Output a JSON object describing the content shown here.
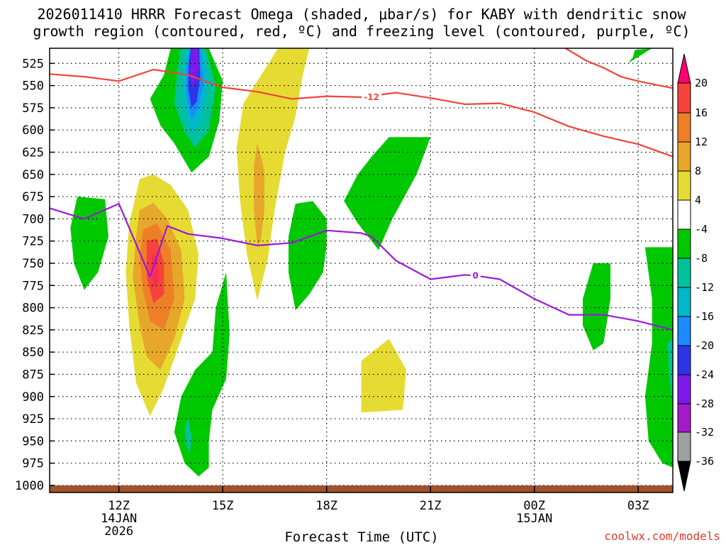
{
  "chart_data": {
    "type": "contour",
    "title_line1": "2026011410 HRRR Forecast Omega (shaded, μbar/s) for KABY with dendritic snow",
    "title_line2": "growth region (contoured, red, ºC) and freezing level (contoured, purple, ºC)",
    "xlabel": "Forecast Time (UTC)",
    "x_ticks": [
      {
        "hour": 12,
        "label": "12Z",
        "sub1": "14JAN",
        "sub2": "2026"
      },
      {
        "hour": 15,
        "label": "15Z",
        "sub1": "",
        "sub2": ""
      },
      {
        "hour": 18,
        "label": "18Z",
        "sub1": "",
        "sub2": ""
      },
      {
        "hour": 21,
        "label": "21Z",
        "sub1": "",
        "sub2": ""
      },
      {
        "hour": 24,
        "label": "00Z",
        "sub1": "15JAN",
        "sub2": ""
      },
      {
        "hour": 27,
        "label": "03Z",
        "sub1": "",
        "sub2": ""
      }
    ],
    "xlim": [
      10,
      28
    ],
    "y_ticks": [
      525,
      550,
      575,
      600,
      625,
      650,
      675,
      700,
      725,
      750,
      775,
      800,
      825,
      850,
      875,
      900,
      925,
      950,
      975,
      1000
    ],
    "ylim": [
      508,
      1008
    ],
    "colorbar": {
      "labels": [
        "20",
        "16",
        "12",
        "8",
        "4",
        "-4",
        "-8",
        "-12",
        "-16",
        "-20",
        "-24",
        "-28",
        "-32",
        "-36"
      ],
      "colors": [
        "#ff0073",
        "#f5433b",
        "#ef7f27",
        "#e6a72b",
        "#e6db32",
        "#ffffff",
        "#00c800",
        "#00c29a",
        "#00b8c8",
        "#1a8cff",
        "#2d36e6",
        "#7d1aeb",
        "#a51ac8",
        "#a0a0a0",
        "#000000"
      ]
    },
    "contour_labels": {
      "dgz": "-12",
      "freezing": "0"
    },
    "series": [
      {
        "name": "dendritic growth region (-12 C)",
        "color": "#f0443a",
        "points": [
          [
            10,
            537
          ],
          [
            11,
            540
          ],
          [
            12,
            545
          ],
          [
            13,
            532
          ],
          [
            14,
            538
          ],
          [
            15,
            552
          ],
          [
            16,
            557
          ],
          [
            17,
            565
          ],
          [
            18,
            562
          ],
          [
            19,
            563
          ],
          [
            20,
            558
          ],
          [
            21,
            564
          ],
          [
            22,
            571
          ],
          [
            23,
            570
          ],
          [
            24,
            580
          ],
          [
            25,
            596
          ],
          [
            26,
            607
          ],
          [
            27,
            616
          ],
          [
            28,
            630
          ]
        ]
      },
      {
        "name": "freezing level (0 C)",
        "color": "#9b1ad6",
        "points": [
          [
            10,
            688
          ],
          [
            11,
            700
          ],
          [
            12,
            683
          ],
          [
            12.9,
            765
          ],
          [
            13.4,
            708
          ],
          [
            14,
            717
          ],
          [
            15,
            722
          ],
          [
            16,
            730
          ],
          [
            17,
            727
          ],
          [
            18,
            713
          ],
          [
            19,
            716
          ],
          [
            19.3,
            720
          ],
          [
            20,
            747
          ],
          [
            21,
            768
          ],
          [
            22,
            763
          ],
          [
            22.5,
            765
          ],
          [
            23,
            768
          ],
          [
            24,
            790
          ],
          [
            25,
            808
          ],
          [
            26,
            808
          ],
          [
            27,
            815
          ],
          [
            28,
            825
          ]
        ]
      },
      {
        "name": "dendritic growth region upper (-12 C)",
        "color": "#f0443a",
        "points": [
          [
            24.9,
            508
          ],
          [
            25.5,
            522
          ],
          [
            26,
            530
          ],
          [
            26.5,
            540
          ],
          [
            27,
            545
          ],
          [
            28,
            553
          ]
        ]
      }
    ],
    "omega_regions": [
      {
        "value": -8,
        "points": [
          [
            13.5,
            508
          ],
          [
            14.6,
            508
          ],
          [
            15.0,
            545
          ],
          [
            14.9,
            590
          ],
          [
            14.6,
            630
          ],
          [
            14.1,
            648
          ],
          [
            13.6,
            615
          ],
          [
            13.2,
            595
          ],
          [
            12.9,
            565
          ],
          [
            13.3,
            538
          ]
        ]
      },
      {
        "value": -12,
        "points": [
          [
            13.8,
            508
          ],
          [
            14.5,
            508
          ],
          [
            14.8,
            550
          ],
          [
            14.6,
            600
          ],
          [
            14.2,
            620
          ],
          [
            13.9,
            602
          ],
          [
            13.6,
            570
          ],
          [
            13.7,
            530
          ]
        ]
      },
      {
        "value": -16,
        "points": [
          [
            13.95,
            508
          ],
          [
            14.45,
            508
          ],
          [
            14.6,
            545
          ],
          [
            14.4,
            590
          ],
          [
            14.1,
            605
          ],
          [
            13.9,
            580
          ],
          [
            13.85,
            540
          ]
        ]
      },
      {
        "value": -20,
        "points": [
          [
            14.05,
            508
          ],
          [
            14.35,
            508
          ],
          [
            14.45,
            545
          ],
          [
            14.3,
            575
          ],
          [
            14.1,
            588
          ],
          [
            13.95,
            560
          ],
          [
            13.95,
            530
          ]
        ]
      },
      {
        "value": -24,
        "points": [
          [
            14.08,
            508
          ],
          [
            14.32,
            508
          ],
          [
            14.35,
            540
          ],
          [
            14.25,
            568
          ],
          [
            14.1,
            575
          ],
          [
            14.0,
            552
          ],
          [
            14.02,
            525
          ]
        ]
      },
      {
        "value": -28,
        "points": [
          [
            14.1,
            508
          ],
          [
            14.28,
            508
          ],
          [
            14.32,
            530
          ],
          [
            14.2,
            545
          ],
          [
            14.12,
            552
          ],
          [
            14.05,
            538
          ],
          [
            14.08,
            515
          ]
        ]
      },
      {
        "value": 4,
        "points": [
          [
            16.6,
            508
          ],
          [
            17.5,
            508
          ],
          [
            17.3,
            540
          ],
          [
            17.1,
            585
          ],
          [
            16.8,
            625
          ],
          [
            16.5,
            690
          ],
          [
            16.3,
            745
          ],
          [
            16.0,
            792
          ],
          [
            15.7,
            740
          ],
          [
            15.5,
            680
          ],
          [
            15.4,
            620
          ],
          [
            15.6,
            570
          ],
          [
            16.0,
            545
          ]
        ]
      },
      {
        "value": 8,
        "points": [
          [
            16.0,
            615
          ],
          [
            16.2,
            645
          ],
          [
            16.2,
            690
          ],
          [
            16.1,
            725
          ],
          [
            16.0,
            730
          ],
          [
            15.9,
            690
          ],
          [
            15.9,
            640
          ]
        ]
      },
      {
        "value": -8,
        "points": [
          [
            10.8,
            675
          ],
          [
            11.6,
            678
          ],
          [
            11.7,
            720
          ],
          [
            11.4,
            760
          ],
          [
            11.0,
            780
          ],
          [
            10.7,
            750
          ],
          [
            10.6,
            710
          ]
        ]
      },
      {
        "value": 4,
        "points": [
          [
            12.6,
            655
          ],
          [
            13.0,
            650
          ],
          [
            13.5,
            662
          ],
          [
            14.0,
            690
          ],
          [
            14.3,
            740
          ],
          [
            14.2,
            790
          ],
          [
            13.8,
            835
          ],
          [
            13.3,
            890
          ],
          [
            12.9,
            922
          ],
          [
            12.5,
            885
          ],
          [
            12.3,
            820
          ],
          [
            12.2,
            760
          ],
          [
            12.3,
            705
          ]
        ]
      },
      {
        "value": 8,
        "points": [
          [
            12.6,
            690
          ],
          [
            13.0,
            682
          ],
          [
            13.4,
            700
          ],
          [
            13.8,
            735
          ],
          [
            13.9,
            790
          ],
          [
            13.6,
            835
          ],
          [
            13.2,
            870
          ],
          [
            12.8,
            855
          ],
          [
            12.6,
            820
          ],
          [
            12.4,
            765
          ],
          [
            12.5,
            720
          ]
        ]
      },
      {
        "value": 12,
        "points": [
          [
            12.7,
            712
          ],
          [
            13.1,
            705
          ],
          [
            13.5,
            735
          ],
          [
            13.6,
            790
          ],
          [
            13.3,
            825
          ],
          [
            12.9,
            815
          ],
          [
            12.7,
            780
          ],
          [
            12.6,
            745
          ]
        ]
      },
      {
        "value": 16,
        "points": [
          [
            12.8,
            725
          ],
          [
            13.1,
            722
          ],
          [
            13.3,
            750
          ],
          [
            13.3,
            785
          ],
          [
            13.0,
            795
          ],
          [
            12.8,
            765
          ]
        ]
      },
      {
        "value": 20,
        "points": [
          [
            12.95,
            740
          ],
          [
            13.1,
            742
          ],
          [
            13.15,
            770
          ],
          [
            13.0,
            778
          ],
          [
            12.95,
            760
          ]
        ]
      },
      {
        "value": -8,
        "points": [
          [
            15.1,
            760
          ],
          [
            15.2,
            830
          ],
          [
            15.1,
            880
          ],
          [
            14.7,
            915
          ],
          [
            14.6,
            950
          ],
          [
            14.6,
            980
          ],
          [
            14.3,
            990
          ],
          [
            13.9,
            975
          ],
          [
            13.6,
            940
          ],
          [
            13.8,
            900
          ],
          [
            14.2,
            870
          ],
          [
            14.7,
            850
          ],
          [
            14.8,
            800
          ]
        ]
      },
      {
        "value": -12,
        "points": [
          [
            14.0,
            925
          ],
          [
            14.1,
            945
          ],
          [
            14.05,
            965
          ],
          [
            13.95,
            955
          ],
          [
            13.9,
            935
          ]
        ]
      },
      {
        "value": -8,
        "points": [
          [
            19.8,
            608
          ],
          [
            21.0,
            608
          ],
          [
            20.6,
            650
          ],
          [
            19.9,
            700
          ],
          [
            19.5,
            735
          ],
          [
            18.9,
            705
          ],
          [
            18.5,
            680
          ],
          [
            18.9,
            650
          ],
          [
            19.3,
            630
          ]
        ]
      },
      {
        "value": -8,
        "points": [
          [
            17.1,
            683
          ],
          [
            17.6,
            680
          ],
          [
            18.0,
            700
          ],
          [
            18.0,
            730
          ],
          [
            17.9,
            760
          ],
          [
            17.5,
            785
          ],
          [
            17.1,
            803
          ],
          [
            16.9,
            760
          ],
          [
            16.9,
            720
          ]
        ]
      },
      {
        "value": 4,
        "points": [
          [
            19.0,
            860
          ],
          [
            19.8,
            835
          ],
          [
            20.3,
            870
          ],
          [
            20.2,
            915
          ],
          [
            19.0,
            918
          ]
        ]
      },
      {
        "value": -8,
        "points": [
          [
            25.7,
            750
          ],
          [
            26.2,
            750
          ],
          [
            26.2,
            790
          ],
          [
            26.0,
            840
          ],
          [
            25.7,
            848
          ],
          [
            25.4,
            820
          ],
          [
            25.4,
            790
          ]
        ]
      },
      {
        "value": -8,
        "points": [
          [
            26.9,
            510
          ],
          [
            27.4,
            508
          ],
          [
            26.7,
            525
          ],
          [
            26.85,
            518
          ]
        ]
      },
      {
        "value": -8,
        "points": [
          [
            27.2,
            732
          ],
          [
            28.0,
            732
          ],
          [
            28.0,
            980
          ],
          [
            27.7,
            975
          ],
          [
            27.3,
            950
          ],
          [
            27.2,
            900
          ],
          [
            27.4,
            840
          ],
          [
            27.4,
            790
          ]
        ]
      },
      {
        "value": -12,
        "points": [
          [
            27.85,
            840
          ],
          [
            28.0,
            835
          ],
          [
            28.0,
            910
          ],
          [
            27.9,
            880
          ]
        ]
      }
    ],
    "ground": {
      "color": "#a0522d"
    }
  },
  "credit": "coolwx.com/models"
}
